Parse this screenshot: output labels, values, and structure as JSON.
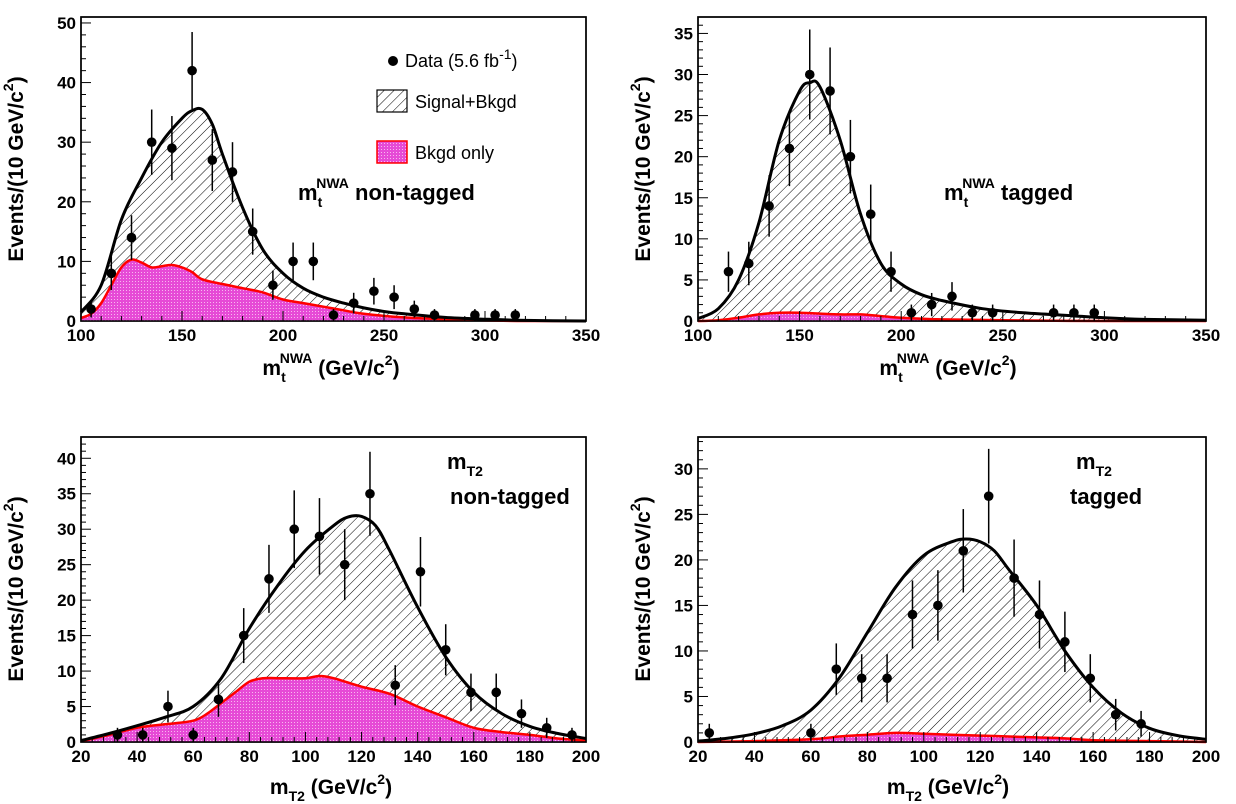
{
  "colors": {
    "signal_fill_pattern": "#000000",
    "background_fill": "#e64ad6",
    "background_line": "#ff0000",
    "total_line": "#000000",
    "data_marker": "#000000"
  },
  "legend": {
    "data_label": "Data (5.6 fb",
    "data_sup": "-1",
    "data_close": ")",
    "signal_label": "Signal+Bkgd",
    "bkgd_label": "Bkgd only"
  },
  "chart_data": [
    {
      "type": "area",
      "panel": "top-left",
      "label_main": "m",
      "label_sub": "t",
      "label_sup": "NWA",
      "label_line2": " non-tagged",
      "xlabel_main": "m",
      "xlabel_sub": "t",
      "xlabel_sup": "NWA",
      "xlabel_rest": " (GeV/c",
      "xlabel_pow": "2",
      "xlabel_close": ")",
      "ylabel_main": "Events/(10 GeV/c",
      "ylabel_pow": "2",
      "ylabel_close": ")",
      "xlim": [
        100,
        350
      ],
      "ylim": [
        0,
        51
      ],
      "xticks": [
        100,
        150,
        200,
        250,
        300,
        350
      ],
      "yticks": [
        0,
        10,
        20,
        30,
        40,
        50
      ],
      "data": {
        "x": [
          105,
          115,
          125,
          135,
          145,
          155,
          165,
          175,
          185,
          195,
          205,
          215,
          225,
          235,
          245,
          255,
          265,
          275,
          295,
          305,
          315
        ],
        "y": [
          2,
          8,
          14,
          30,
          29,
          42,
          27,
          25,
          15,
          6,
          10,
          10,
          1,
          3,
          5,
          4,
          2,
          1,
          1,
          1,
          1
        ]
      },
      "signal_bkgd": {
        "x": [
          100,
          110,
          120,
          130,
          140,
          150,
          155,
          160,
          165,
          170,
          180,
          190,
          200,
          210,
          220,
          230,
          240,
          250,
          260,
          280,
          300,
          320,
          350
        ],
        "y": [
          1.5,
          6,
          17,
          24,
          30,
          34,
          35.3,
          35.5,
          33,
          28,
          19,
          12,
          8,
          5.5,
          4,
          3,
          2.2,
          1.6,
          1.2,
          0.6,
          0.3,
          0.1,
          0.0
        ]
      },
      "bkgd_only": {
        "x": [
          100,
          105,
          110,
          115,
          120,
          125,
          130,
          135,
          140,
          145,
          150,
          155,
          160,
          170,
          180,
          190,
          200,
          210,
          220,
          230,
          240,
          260,
          280,
          300,
          320,
          350
        ],
        "y": [
          0.5,
          1.2,
          3,
          6,
          9,
          10.3,
          9.8,
          9.0,
          9.2,
          9.4,
          9.0,
          8.2,
          7.0,
          6.2,
          5.5,
          4.8,
          3.6,
          3.0,
          2.4,
          1.8,
          1.2,
          0.6,
          0.3,
          0.1,
          0.0,
          0.0
        ]
      }
    },
    {
      "type": "area",
      "panel": "top-right",
      "label_main": "m",
      "label_sub": "t",
      "label_sup": "NWA",
      "label_line2": " tagged",
      "xlabel_main": "m",
      "xlabel_sub": "t",
      "xlabel_sup": "NWA",
      "xlabel_rest": " (GeV/c",
      "xlabel_pow": "2",
      "xlabel_close": ")",
      "ylabel_main": "Events/(10 GeV/c",
      "ylabel_pow": "2",
      "ylabel_close": ")",
      "xlim": [
        100,
        350
      ],
      "ylim": [
        0,
        37
      ],
      "xticks": [
        100,
        150,
        200,
        250,
        300,
        350
      ],
      "yticks": [
        0,
        5,
        10,
        15,
        20,
        25,
        30,
        35
      ],
      "data": {
        "x": [
          115,
          125,
          135,
          145,
          155,
          165,
          175,
          185,
          195,
          205,
          215,
          225,
          235,
          245,
          275,
          285,
          295
        ],
        "y": [
          6,
          7,
          14,
          21,
          30,
          28,
          20,
          13,
          6,
          1,
          2,
          3,
          1,
          1,
          1,
          1,
          1
        ]
      },
      "signal_bkgd": {
        "x": [
          100,
          110,
          120,
          130,
          140,
          150,
          155,
          160,
          170,
          180,
          190,
          200,
          210,
          220,
          240,
          260,
          280,
          300,
          320,
          350
        ],
        "y": [
          0.3,
          1.5,
          5,
          12,
          22,
          28,
          29,
          28.5,
          22,
          13,
          7,
          4.5,
          3.2,
          2.5,
          1.5,
          1.0,
          0.7,
          0.4,
          0.2,
          0.1
        ]
      },
      "bkgd_only": {
        "x": [
          100,
          110,
          120,
          130,
          140,
          150,
          160,
          170,
          180,
          190,
          200,
          220,
          250,
          300,
          350
        ],
        "y": [
          0.0,
          0.1,
          0.4,
          0.8,
          1.0,
          1.0,
          0.9,
          0.8,
          0.8,
          0.6,
          0.4,
          0.2,
          0.1,
          0.0,
          0.0
        ]
      }
    },
    {
      "type": "area",
      "panel": "bottom-left",
      "label_main": "m",
      "label_sub": "T2",
      "label_sup": "",
      "label_line2": "non-tagged",
      "xlabel_main": "m",
      "xlabel_sub": "T2",
      "xlabel_sup": "",
      "xlabel_rest": " (GeV/c",
      "xlabel_pow": "2",
      "xlabel_close": ")",
      "ylabel_main": "Events/(10 GeV/c",
      "ylabel_pow": "2",
      "ylabel_close": ")",
      "xlim": [
        20,
        200
      ],
      "ylim": [
        0,
        43
      ],
      "xticks": [
        20,
        40,
        60,
        80,
        100,
        120,
        140,
        160,
        180,
        200
      ],
      "yticks": [
        0,
        5,
        10,
        15,
        20,
        25,
        30,
        35,
        40
      ],
      "data": {
        "x": [
          33,
          42,
          51,
          60,
          69,
          78,
          87,
          96,
          105,
          114,
          123,
          132,
          141,
          150,
          159,
          168,
          177,
          186,
          195
        ],
        "y": [
          1,
          1,
          5,
          1,
          6,
          15,
          23,
          30,
          29,
          25,
          35,
          8,
          24,
          13,
          7,
          7,
          4,
          2,
          1
        ]
      },
      "signal_bkgd": {
        "x": [
          20,
          30,
          40,
          50,
          60,
          70,
          80,
          90,
          100,
          110,
          115,
          120,
          125,
          130,
          140,
          150,
          160,
          170,
          180,
          190,
          200
        ],
        "y": [
          0.2,
          1.2,
          2.3,
          3.5,
          5,
          9,
          16,
          22,
          27,
          30.5,
          31.7,
          31.8,
          30.5,
          27,
          19,
          12,
          7,
          4,
          2.2,
          1.2,
          0.5
        ]
      },
      "bkgd_only": {
        "x": [
          20,
          30,
          40,
          50,
          60,
          65,
          70,
          75,
          80,
          85,
          90,
          100,
          105,
          110,
          120,
          130,
          140,
          150,
          160,
          170,
          180,
          190,
          200
        ],
        "y": [
          0.1,
          1.0,
          2.0,
          2.5,
          3.0,
          4.0,
          5.5,
          7.0,
          8.5,
          9.0,
          9.0,
          9.0,
          9.3,
          9.0,
          7.8,
          6.8,
          5.0,
          3.5,
          2.0,
          1.4,
          1.0,
          0.5,
          0.2
        ]
      }
    },
    {
      "type": "area",
      "panel": "bottom-right",
      "label_main": "m",
      "label_sub": "T2",
      "label_sup": "",
      "label_line2": "tagged",
      "xlabel_main": "m",
      "xlabel_sub": "T2",
      "xlabel_sup": "",
      "xlabel_rest": " (GeV/c",
      "xlabel_pow": "2",
      "xlabel_close": ")",
      "ylabel_main": "Events/(10 GeV/c",
      "ylabel_pow": "2",
      "ylabel_close": ")",
      "xlim": [
        20,
        200
      ],
      "ylim": [
        0,
        33.5
      ],
      "xticks": [
        20,
        40,
        60,
        80,
        100,
        120,
        140,
        160,
        180,
        200
      ],
      "yticks": [
        0,
        5,
        10,
        15,
        20,
        25,
        30
      ],
      "data": {
        "x": [
          24,
          60,
          69,
          78,
          87,
          96,
          105,
          114,
          123,
          132,
          141,
          150,
          159,
          168,
          177
        ],
        "y": [
          1,
          1,
          8,
          7,
          7,
          14,
          15,
          21,
          27,
          18,
          14,
          11,
          7,
          3,
          2
        ]
      },
      "signal_bkgd": {
        "x": [
          20,
          30,
          40,
          50,
          60,
          70,
          80,
          90,
          100,
          110,
          115,
          120,
          125,
          130,
          140,
          150,
          160,
          170,
          180,
          190,
          200
        ],
        "y": [
          0.1,
          0.4,
          0.9,
          1.8,
          3.5,
          7,
          12,
          17,
          20.5,
          22,
          22.3,
          22.0,
          21,
          19,
          15,
          10,
          6,
          3.2,
          1.5,
          0.7,
          0.3
        ]
      },
      "bkgd_only": {
        "x": [
          20,
          40,
          60,
          70,
          80,
          90,
          100,
          110,
          120,
          130,
          140,
          150,
          160,
          180,
          200
        ],
        "y": [
          0.0,
          0.1,
          0.3,
          0.6,
          0.8,
          1.0,
          0.9,
          0.8,
          0.7,
          0.6,
          0.5,
          0.4,
          0.2,
          0.1,
          0.0
        ]
      }
    }
  ]
}
